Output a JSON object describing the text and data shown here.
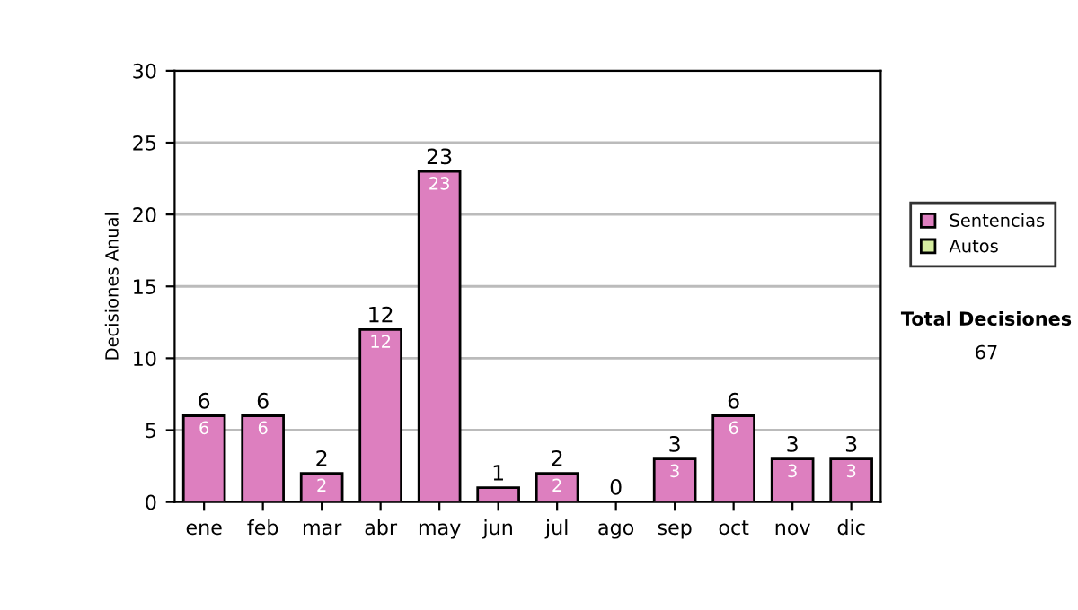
{
  "chart_data": {
    "type": "bar",
    "stacked": true,
    "ylabel": "Decisiones Anual",
    "categories": [
      "ene",
      "feb",
      "mar",
      "abr",
      "may",
      "jun",
      "jul",
      "ago",
      "sep",
      "oct",
      "nov",
      "dic"
    ],
    "series": [
      {
        "name": "Sentencias",
        "color": "#dd7fbf",
        "values": [
          6,
          6,
          2,
          12,
          23,
          1,
          2,
          0,
          3,
          6,
          3,
          3
        ],
        "value_labels": [
          "6",
          "6",
          "2",
          "12",
          "23",
          null,
          "2",
          null,
          "3",
          "6",
          "3",
          "3"
        ]
      },
      {
        "name": "Autos",
        "color": "#d6eea0",
        "values": [
          0,
          0,
          0,
          0,
          0,
          0,
          0,
          0,
          0,
          0,
          0,
          0
        ]
      }
    ],
    "totals": [
      "6",
      "6",
      "2",
      "12",
      "23",
      "1",
      "2",
      "0",
      "3",
      "6",
      "3",
      "3"
    ],
    "ylim": [
      0,
      30
    ],
    "yticks": [
      0,
      5,
      10,
      15,
      20,
      25,
      30
    ],
    "grid": "y",
    "legend": "right",
    "annotations": [
      "Total Decisiones",
      "67"
    ]
  }
}
